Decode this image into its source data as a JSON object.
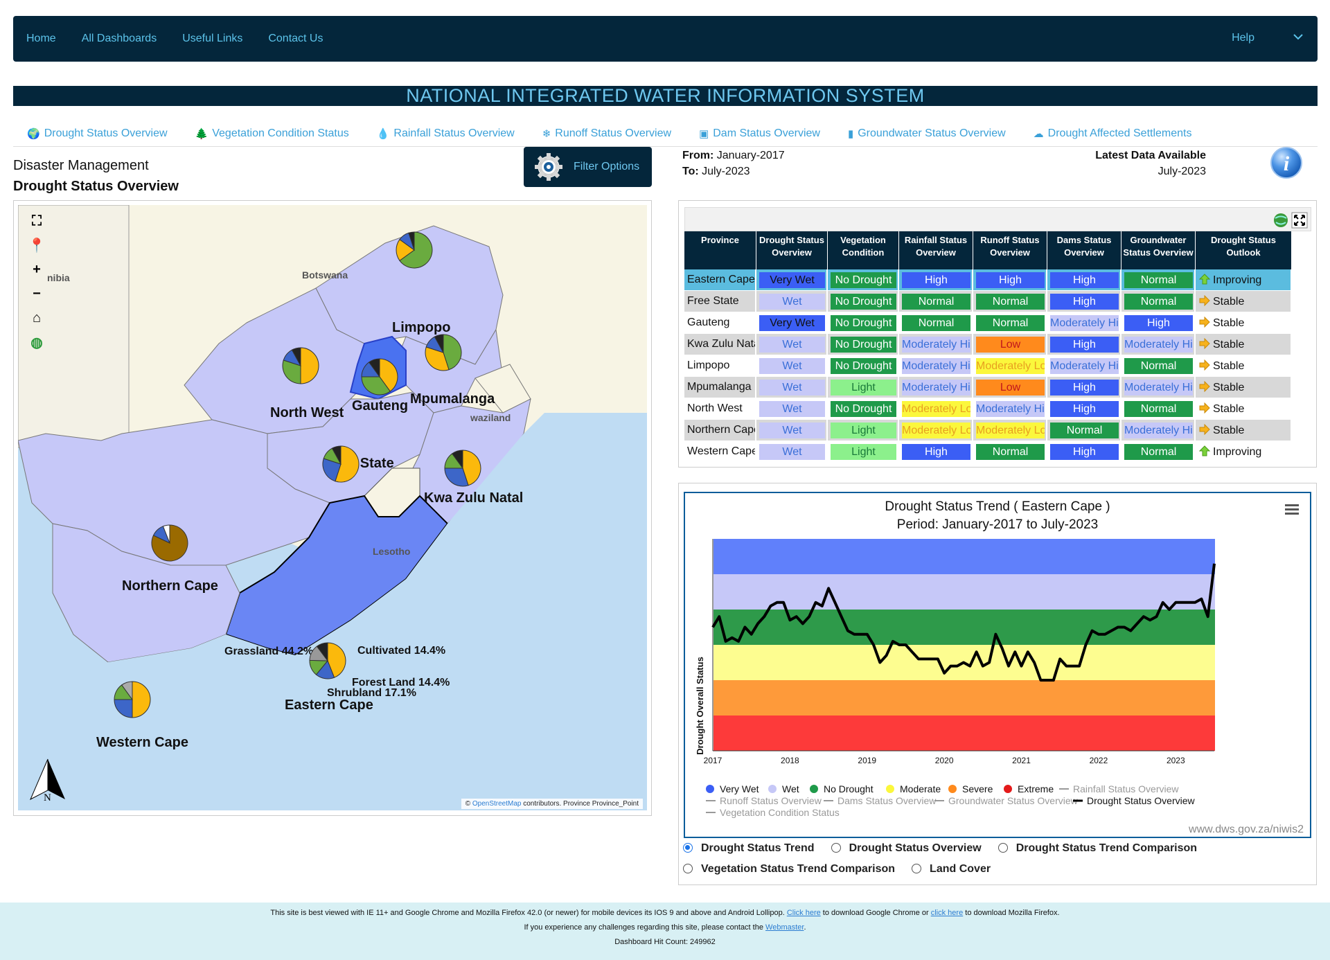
{
  "nav": {
    "items": [
      "Home",
      "All Dashboards",
      "Useful Links",
      "Contact Us"
    ],
    "help": "Help"
  },
  "title": "NATIONAL INTEGRATED WATER INFORMATION SYSTEM",
  "tabs": [
    {
      "label": "Drought Status Overview",
      "icon": "globe-icon",
      "glyph": "🌍"
    },
    {
      "label": "Vegetation Condition Status",
      "icon": "tree-icon",
      "glyph": "🌲"
    },
    {
      "label": "Rainfall Status Overview",
      "icon": "drop-icon",
      "glyph": "💧"
    },
    {
      "label": "Runoff Status Overview",
      "icon": "snowflake-icon",
      "glyph": "❄"
    },
    {
      "label": "Dam Status Overview",
      "icon": "dam-icon",
      "glyph": "▣"
    },
    {
      "label": "Groundwater Status Overview",
      "icon": "bars-icon",
      "glyph": "▮"
    },
    {
      "label": "Drought Affected Settlements",
      "icon": "cloud-icon",
      "glyph": "☁"
    }
  ],
  "section": {
    "category": "Disaster Management",
    "title": "Drought Status Overview"
  },
  "filter": {
    "label": "Filter Options"
  },
  "period": {
    "from_label": "From:",
    "from": "January-2017",
    "to_label": "To:",
    "to": "July-2023",
    "latest_label": "Latest Data Available",
    "latest": "July-2023"
  },
  "map": {
    "labels": {
      "limpopo": "Limpopo",
      "north_west": "North West",
      "gauteng": "Gauteng",
      "mpumalanga": "Mpumalanga",
      "free_state": "Free State",
      "lesotho": "Lesotho",
      "kzn": "Kwa Zulu Natal",
      "northern_cape": "Northern Cape",
      "western_cape": "Western Cape",
      "eastern_cape": "Eastern Cape",
      "botswana": "Botswana",
      "namibia": "nibia",
      "swaziland": "waziland",
      "grassland": "Grassland 44.2%",
      "cultivated": "Cultivated 14.4%",
      "forest": "Forest Land 14.4%",
      "shrubland": "Shrubland 17.1%"
    },
    "attribution": {
      "prefix": "©",
      "link": "OpenStreetMap",
      "suffix": "contributors. Province Province_Point"
    },
    "north": "N"
  },
  "table": {
    "headers": [
      "Province",
      "Drought Status Overview",
      "Vegetation Condition",
      "Rainfall Status Overview",
      "Runoff Status Overview",
      "Dams Status Overview",
      "Groundwater Status Overview",
      "Drought Status Outlook"
    ],
    "rows": [
      {
        "province": "Eastern Cape",
        "cells": [
          [
            "Very Wet",
            "#3b5ef5",
            "#111"
          ],
          [
            "No Drought",
            "#1f9a4a",
            "#fff"
          ],
          [
            "High",
            "#3b5ef5",
            "#fff"
          ],
          [
            "High",
            "#3b5ef5",
            "#fff"
          ],
          [
            "High",
            "#3b5ef5",
            "#fff"
          ],
          [
            "Normal",
            "#1f9a4a",
            "#fff"
          ]
        ],
        "outlook": "Improving",
        "dir": "up",
        "bg": "#5bbcdf"
      },
      {
        "province": "Free State",
        "cells": [
          [
            "Wet",
            "#c6c8f7",
            "#3a6fd8"
          ],
          [
            "No Drought",
            "#1f9a4a",
            "#fff"
          ],
          [
            "Normal",
            "#1f9a4a",
            "#fff"
          ],
          [
            "Normal",
            "#1f9a4a",
            "#fff"
          ],
          [
            "High",
            "#3b5ef5",
            "#fff"
          ],
          [
            "Normal",
            "#1f9a4a",
            "#fff"
          ]
        ],
        "outlook": "Stable",
        "dir": "right",
        "bg": "#d8d8d8"
      },
      {
        "province": "Gauteng",
        "cells": [
          [
            "Very Wet",
            "#3b5ef5",
            "#111"
          ],
          [
            "No Drought",
            "#1f9a4a",
            "#fff"
          ],
          [
            "Normal",
            "#1f9a4a",
            "#fff"
          ],
          [
            "Normal",
            "#1f9a4a",
            "#fff"
          ],
          [
            "Moderately High",
            "#c6c8f7",
            "#3a6fd8"
          ],
          [
            "High",
            "#3b5ef5",
            "#fff"
          ]
        ],
        "outlook": "Stable",
        "dir": "right",
        "bg": "#fff"
      },
      {
        "province": "Kwa Zulu Natal",
        "cells": [
          [
            "Wet",
            "#c6c8f7",
            "#3a6fd8"
          ],
          [
            "No Drought",
            "#1f9a4a",
            "#fff"
          ],
          [
            "Moderately High",
            "#c6c8f7",
            "#3a6fd8"
          ],
          [
            "Low",
            "#ff8a1c",
            "#c0161c"
          ],
          [
            "High",
            "#3b5ef5",
            "#fff"
          ],
          [
            "Moderately High",
            "#c6c8f7",
            "#3a6fd8"
          ]
        ],
        "outlook": "Stable",
        "dir": "right",
        "bg": "#d8d8d8"
      },
      {
        "province": "Limpopo",
        "cells": [
          [
            "Wet",
            "#c6c8f7",
            "#3a6fd8"
          ],
          [
            "No Drought",
            "#1f9a4a",
            "#fff"
          ],
          [
            "Moderately High",
            "#c6c8f7",
            "#3a6fd8"
          ],
          [
            "Moderately Low",
            "#fbf73c",
            "#e8a020"
          ],
          [
            "Moderately High",
            "#c6c8f7",
            "#3a6fd8"
          ],
          [
            "Normal",
            "#1f9a4a",
            "#fff"
          ]
        ],
        "outlook": "Stable",
        "dir": "right",
        "bg": "#fff"
      },
      {
        "province": "Mpumalanga",
        "cells": [
          [
            "Wet",
            "#c6c8f7",
            "#3a6fd8"
          ],
          [
            "Light",
            "#8cf08c",
            "#1a7a3a"
          ],
          [
            "Moderately High",
            "#c6c8f7",
            "#3a6fd8"
          ],
          [
            "Low",
            "#ff8a1c",
            "#c0161c"
          ],
          [
            "High",
            "#3b5ef5",
            "#fff"
          ],
          [
            "Moderately High",
            "#c6c8f7",
            "#3a6fd8"
          ]
        ],
        "outlook": "Stable",
        "dir": "right",
        "bg": "#d8d8d8"
      },
      {
        "province": "North West",
        "cells": [
          [
            "Wet",
            "#c6c8f7",
            "#3a6fd8"
          ],
          [
            "No Drought",
            "#1f9a4a",
            "#fff"
          ],
          [
            "Moderately Low",
            "#fbf73c",
            "#e8a020"
          ],
          [
            "Moderately High",
            "#c6c8f7",
            "#3a6fd8"
          ],
          [
            "High",
            "#3b5ef5",
            "#fff"
          ],
          [
            "Normal",
            "#1f9a4a",
            "#fff"
          ]
        ],
        "outlook": "Stable",
        "dir": "right",
        "bg": "#fff"
      },
      {
        "province": "Northern Cape",
        "cells": [
          [
            "Wet",
            "#c6c8f7",
            "#3a6fd8"
          ],
          [
            "Light",
            "#8cf08c",
            "#1a7a3a"
          ],
          [
            "Moderately Low",
            "#fbf73c",
            "#e8a020"
          ],
          [
            "Moderately Low",
            "#fbf73c",
            "#e8a020"
          ],
          [
            "Normal",
            "#1f9a4a",
            "#fff"
          ],
          [
            "Moderately High",
            "#c6c8f7",
            "#3a6fd8"
          ]
        ],
        "outlook": "Stable",
        "dir": "right",
        "bg": "#d8d8d8"
      },
      {
        "province": "Western Cape",
        "cells": [
          [
            "Wet",
            "#c6c8f7",
            "#3a6fd8"
          ],
          [
            "Light",
            "#8cf08c",
            "#1a7a3a"
          ],
          [
            "High",
            "#3b5ef5",
            "#fff"
          ],
          [
            "Normal",
            "#1f9a4a",
            "#fff"
          ],
          [
            "High",
            "#3b5ef5",
            "#fff"
          ],
          [
            "Normal",
            "#1f9a4a",
            "#fff"
          ]
        ],
        "outlook": "Improving",
        "dir": "up",
        "bg": "#fff"
      }
    ]
  },
  "chart_data": {
    "type": "line",
    "title": "Drought Status Trend ( Eastern Cape )",
    "subtitle": "Period: January-2017 to July-2023",
    "ylabel": "Drought Overall Status",
    "xlim": [
      "2017-01",
      "2023-07"
    ],
    "ylim": [
      0,
      6
    ],
    "xticks": [
      "2017",
      "2018",
      "2019",
      "2020",
      "2021",
      "2022",
      "2023"
    ],
    "bands": [
      {
        "name": "Extreme",
        "from": 0,
        "to": 1,
        "color": "#fd3a3a"
      },
      {
        "name": "Severe",
        "from": 1,
        "to": 2,
        "color": "#fe9a3a"
      },
      {
        "name": "Moderate",
        "from": 2,
        "to": 3,
        "color": "#fdfd90"
      },
      {
        "name": "No Drought",
        "from": 3,
        "to": 4,
        "color": "#2e9a4a"
      },
      {
        "name": "Wet",
        "from": 4,
        "to": 5,
        "color": "#c6c8f8"
      },
      {
        "name": "Very Wet",
        "from": 5,
        "to": 6,
        "color": "#6080fb"
      }
    ],
    "series": [
      {
        "name": "Drought Status Overview",
        "color": "#000000",
        "x": [
          "2017-01",
          "2017-02",
          "2017-03",
          "2017-04",
          "2017-05",
          "2017-06",
          "2017-07",
          "2017-08",
          "2017-09",
          "2017-10",
          "2017-11",
          "2017-12",
          "2018-01",
          "2018-02",
          "2018-03",
          "2018-04",
          "2018-05",
          "2018-06",
          "2018-07",
          "2018-08",
          "2018-09",
          "2018-10",
          "2018-11",
          "2018-12",
          "2019-01",
          "2019-02",
          "2019-03",
          "2019-04",
          "2019-05",
          "2019-06",
          "2019-07",
          "2019-08",
          "2019-09",
          "2019-10",
          "2019-11",
          "2019-12",
          "2020-01",
          "2020-02",
          "2020-03",
          "2020-04",
          "2020-05",
          "2020-06",
          "2020-07",
          "2020-08",
          "2020-09",
          "2020-10",
          "2020-11",
          "2020-12",
          "2021-01",
          "2021-02",
          "2021-03",
          "2021-04",
          "2021-05",
          "2021-06",
          "2021-07",
          "2021-08",
          "2021-09",
          "2021-10",
          "2021-11",
          "2021-12",
          "2022-01",
          "2022-02",
          "2022-03",
          "2022-04",
          "2022-05",
          "2022-06",
          "2022-07",
          "2022-08",
          "2022-09",
          "2022-10",
          "2022-11",
          "2022-12",
          "2023-01",
          "2023-02",
          "2023-03",
          "2023-04",
          "2023-05",
          "2023-06",
          "2023-07"
        ],
        "values": [
          3.5,
          3.8,
          3.1,
          3.2,
          3.1,
          3.5,
          3.3,
          3.6,
          3.8,
          4.1,
          4.2,
          4.2,
          3.7,
          3.8,
          3.6,
          3.8,
          4.2,
          4.1,
          4.6,
          4.2,
          3.8,
          3.4,
          3.3,
          3.3,
          3.3,
          3.0,
          2.5,
          2.7,
          3.1,
          3.0,
          3.0,
          2.8,
          2.6,
          2.6,
          2.6,
          2.6,
          2.2,
          2.4,
          2.4,
          2.5,
          2.4,
          2.8,
          2.4,
          2.5,
          3.3,
          2.9,
          2.4,
          2.8,
          2.4,
          2.8,
          2.5,
          2.0,
          2.0,
          2.0,
          2.6,
          2.4,
          2.4,
          2.4,
          3.0,
          3.4,
          3.3,
          3.3,
          3.4,
          3.5,
          3.5,
          3.4,
          3.6,
          3.8,
          3.7,
          3.8,
          4.2,
          4.0,
          4.2,
          4.2,
          4.2,
          4.2,
          4.3,
          3.8,
          5.3
        ]
      }
    ],
    "legend": [
      {
        "label": "Very Wet",
        "kind": "dot",
        "color": "#3b5ef5"
      },
      {
        "label": "Wet",
        "kind": "dot",
        "color": "#c6c8f7"
      },
      {
        "label": "No Drought",
        "kind": "dot",
        "color": "#1f9a4a"
      },
      {
        "label": "Moderate",
        "kind": "dot",
        "color": "#fbf73c"
      },
      {
        "label": "Severe",
        "kind": "dot",
        "color": "#ff8a1c"
      },
      {
        "label": "Extreme",
        "kind": "dot",
        "color": "#e41a1a"
      },
      {
        "label": "Rainfall Status Overview",
        "kind": "line",
        "color": "#999999",
        "muted": true
      },
      {
        "label": "Runoff Status Overview",
        "kind": "line",
        "color": "#999999",
        "muted": true
      },
      {
        "label": "Dams Status Overview",
        "kind": "line",
        "color": "#999999",
        "muted": true
      },
      {
        "label": "Groundwater Status Overview",
        "kind": "line",
        "color": "#999999",
        "muted": true
      },
      {
        "label": "Drought Status Overview",
        "kind": "line",
        "color": "#000000",
        "muted": false
      },
      {
        "label": "Vegetation Condition Status",
        "kind": "line",
        "color": "#999999",
        "muted": true
      }
    ],
    "credit": "www.dws.gov.za/niwis2",
    "grid": false,
    "legend_position": "bottom"
  },
  "chart_options": [
    {
      "label": "Drought Status Trend",
      "checked": true
    },
    {
      "label": "Drought Status Overview",
      "checked": false
    },
    {
      "label": "Drought Status Trend Comparison",
      "checked": false
    },
    {
      "label": "Vegetation Status Trend Comparison",
      "checked": false
    },
    {
      "label": "Land Cover",
      "checked": false
    }
  ],
  "footer": {
    "line1_a": "This site is best viewed with IE 11+ and Google Chrome and Mozilla Firefox 42.0 (or newer) for mobile devices its IOS 9 and above and Android Lollipop.",
    "link1": "Click here",
    "line1_b": "to download Google Chrome or",
    "link2": "click here",
    "line1_c": "to download Mozilla Firefox.",
    "line2_a": "If you experience any challenges regarding this site, please contact the",
    "link3": "Webmaster",
    "line2_b": ".",
    "hits": "Dashboard Hit Count: 249962"
  },
  "colors": {
    "navy": "#04263b",
    "accent": "#6fc8f0",
    "link": "#3aa0d8"
  }
}
